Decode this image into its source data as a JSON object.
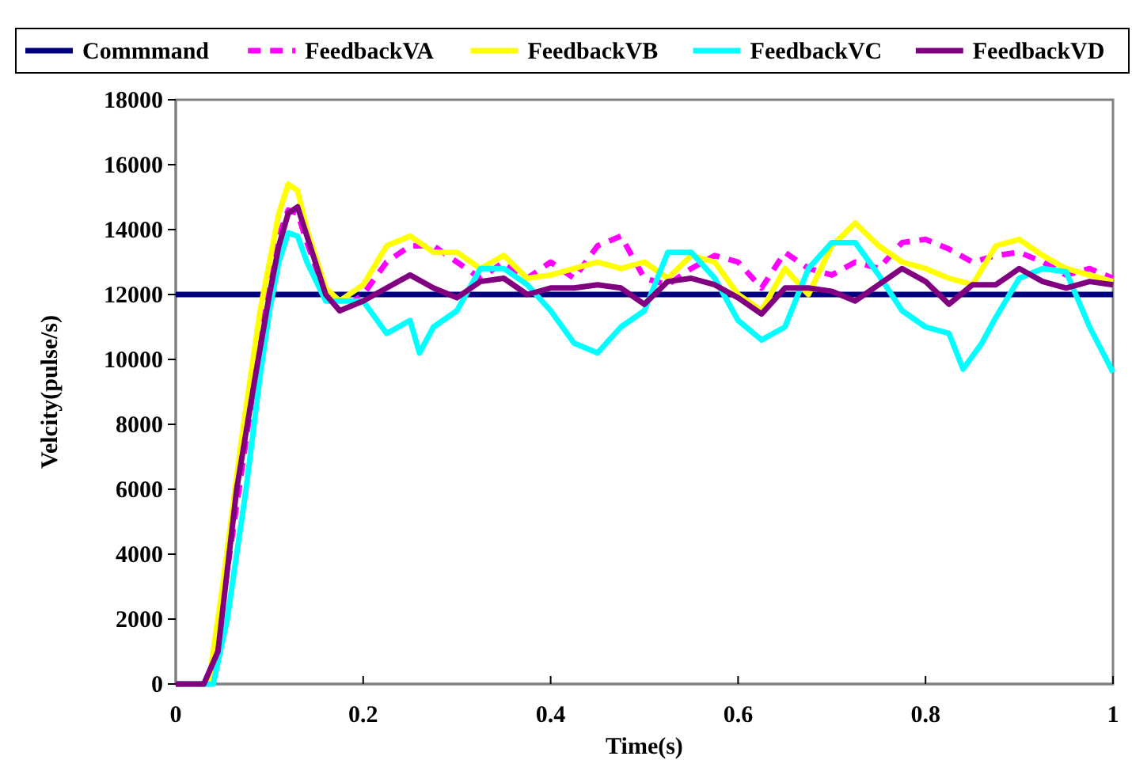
{
  "chart_data": {
    "type": "line",
    "xlabel": "Time(s)",
    "ylabel": "Velcity(pulse/s)",
    "xlim": [
      0,
      1
    ],
    "xticks": [
      0,
      0.2,
      0.4,
      0.6,
      0.8,
      1
    ],
    "ylim": [
      0,
      18000
    ],
    "yticks": [
      0,
      2000,
      4000,
      6000,
      8000,
      10000,
      12000,
      14000,
      16000,
      18000
    ],
    "grid": false,
    "legend": "top",
    "marker": "none",
    "series": [
      {
        "name": "Commmand",
        "color": "#000080",
        "x": [
          0,
          1
        ],
        "values": [
          12000,
          12000
        ]
      },
      {
        "name": "FeedbackVA",
        "color": "#ff00ff",
        "line_style": "dashed",
        "x": [
          0,
          0.035,
          0.05,
          0.07,
          0.09,
          0.1,
          0.11,
          0.12,
          0.13,
          0.14,
          0.16,
          0.175,
          0.2,
          0.225,
          0.25,
          0.275,
          0.3,
          0.325,
          0.35,
          0.375,
          0.4,
          0.425,
          0.45,
          0.475,
          0.5,
          0.525,
          0.55,
          0.575,
          0.6,
          0.625,
          0.65,
          0.675,
          0.7,
          0.725,
          0.75,
          0.775,
          0.8,
          0.825,
          0.85,
          0.875,
          0.9,
          0.925,
          0.95,
          0.975,
          1
        ],
        "values": [
          0,
          0,
          2500,
          6500,
          10500,
          12500,
          13800,
          14600,
          14500,
          13600,
          12000,
          11500,
          12000,
          13000,
          13500,
          13500,
          13000,
          12500,
          13000,
          12500,
          13000,
          12500,
          13500,
          13800,
          12500,
          12300,
          12800,
          13200,
          13000,
          12200,
          13300,
          12800,
          12600,
          13000,
          12800,
          13600,
          13700,
          13400,
          13000,
          13200,
          13300,
          13000,
          12600,
          12800,
          12500
        ]
      },
      {
        "name": "FeedbackVB",
        "color": "#ffff00",
        "x": [
          0,
          0.035,
          0.05,
          0.07,
          0.09,
          0.1,
          0.11,
          0.12,
          0.13,
          0.14,
          0.16,
          0.175,
          0.2,
          0.225,
          0.25,
          0.275,
          0.3,
          0.325,
          0.35,
          0.375,
          0.4,
          0.425,
          0.45,
          0.475,
          0.5,
          0.525,
          0.55,
          0.575,
          0.6,
          0.625,
          0.65,
          0.675,
          0.7,
          0.725,
          0.75,
          0.775,
          0.8,
          0.825,
          0.85,
          0.875,
          0.9,
          0.925,
          0.95,
          0.975,
          1
        ],
        "values": [
          0,
          0,
          3000,
          7500,
          11500,
          13000,
          14500,
          15400,
          15200,
          14000,
          12200,
          11800,
          12300,
          13500,
          13800,
          13300,
          13300,
          12800,
          13200,
          12500,
          12600,
          12800,
          13000,
          12800,
          13000,
          12500,
          13200,
          13000,
          12000,
          11500,
          12800,
          12000,
          13500,
          14200,
          13500,
          13000,
          12800,
          12500,
          12300,
          13500,
          13700,
          13200,
          12800,
          12600,
          12400
        ]
      },
      {
        "name": "FeedbackVC",
        "color": "#00ffff",
        "x": [
          0,
          0.04,
          0.055,
          0.075,
          0.09,
          0.1,
          0.11,
          0.12,
          0.13,
          0.14,
          0.16,
          0.175,
          0.2,
          0.225,
          0.25,
          0.26,
          0.275,
          0.3,
          0.325,
          0.35,
          0.375,
          0.4,
          0.425,
          0.45,
          0.475,
          0.5,
          0.525,
          0.55,
          0.575,
          0.6,
          0.625,
          0.65,
          0.675,
          0.7,
          0.725,
          0.75,
          0.775,
          0.8,
          0.825,
          0.84,
          0.86,
          0.875,
          0.9,
          0.925,
          0.95,
          0.975,
          1
        ],
        "values": [
          0,
          0,
          2000,
          6000,
          9500,
          11500,
          13000,
          13900,
          13800,
          13000,
          11800,
          11800,
          11800,
          10800,
          11200,
          10200,
          11000,
          11500,
          12800,
          12800,
          12300,
          11500,
          10500,
          10200,
          11000,
          11500,
          13300,
          13300,
          12500,
          11200,
          10600,
          11000,
          12800,
          13600,
          13600,
          12600,
          11500,
          11000,
          10800,
          9700,
          10500,
          11300,
          12500,
          12800,
          12700,
          11000,
          9600
        ]
      },
      {
        "name": "FeedbackVD",
        "color": "#800080",
        "x": [
          0,
          0.03,
          0.045,
          0.065,
          0.085,
          0.1,
          0.11,
          0.12,
          0.13,
          0.14,
          0.16,
          0.175,
          0.2,
          0.225,
          0.25,
          0.275,
          0.3,
          0.325,
          0.35,
          0.375,
          0.4,
          0.425,
          0.45,
          0.475,
          0.5,
          0.525,
          0.55,
          0.575,
          0.6,
          0.625,
          0.65,
          0.675,
          0.7,
          0.725,
          0.75,
          0.775,
          0.8,
          0.825,
          0.85,
          0.875,
          0.9,
          0.925,
          0.95,
          0.975,
          1
        ],
        "values": [
          0,
          0,
          1000,
          6000,
          9500,
          12000,
          13500,
          14500,
          14700,
          13800,
          12000,
          11500,
          11800,
          12200,
          12600,
          12200,
          11900,
          12400,
          12500,
          12000,
          12200,
          12200,
          12300,
          12200,
          11700,
          12400,
          12500,
          12300,
          11900,
          11400,
          12200,
          12200,
          12100,
          11800,
          12300,
          12800,
          12400,
          11700,
          12300,
          12300,
          12800,
          12400,
          12200,
          12400,
          12300
        ]
      }
    ]
  }
}
